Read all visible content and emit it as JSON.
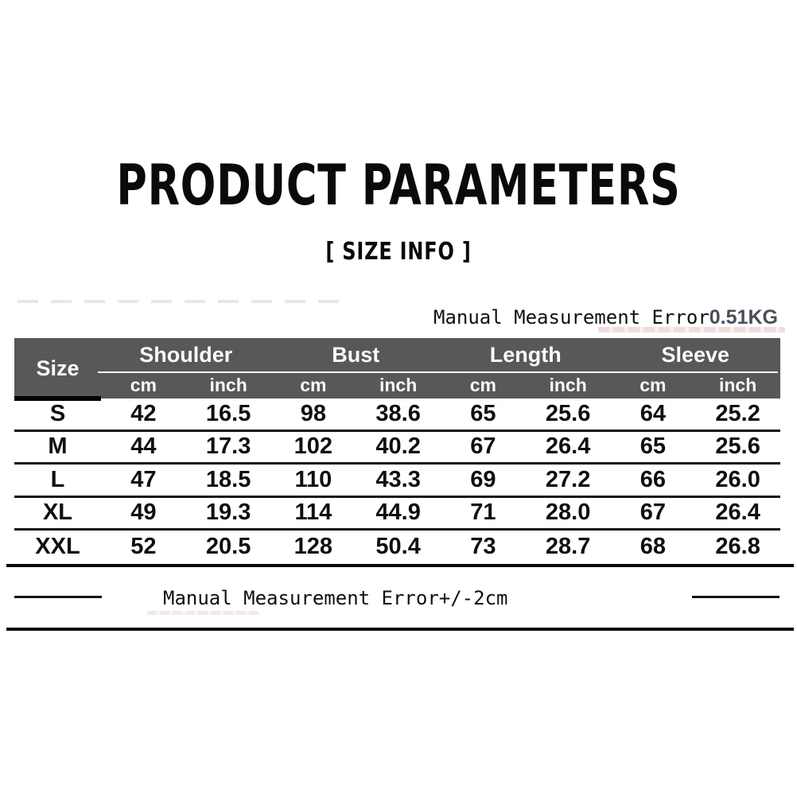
{
  "header": {
    "title": "PRODUCT PARAMETERS",
    "subtitle": "[ SIZE INFO ]"
  },
  "notes": {
    "top": {
      "label": "Manual Measurement Error",
      "value": "0.51KG"
    },
    "bottom": "Manual Measurement Error+/-2cm"
  },
  "colors": {
    "header_bg": "#58585a",
    "header_text": "#fafafa",
    "body_text": "#0f0f0f",
    "kg_value_text": "#4b4e57"
  },
  "chart_data": {
    "type": "table",
    "title": "PRODUCT PARAMETERS [ SIZE INFO ]",
    "size_label": "Size",
    "groups": [
      "Shoulder",
      "Bust",
      "Length",
      "Sleeve"
    ],
    "units": [
      "cm",
      "inch",
      "cm",
      "inch",
      "cm",
      "inch",
      "cm",
      "inch"
    ],
    "rows": [
      [
        "S",
        "42",
        "16.5",
        "98",
        "38.6",
        "65",
        "25.6",
        "64",
        "25.2"
      ],
      [
        "M",
        "44",
        "17.3",
        "102",
        "40.2",
        "67",
        "26.4",
        "65",
        "25.6"
      ],
      [
        "L",
        "47",
        "18.5",
        "110",
        "43.3",
        "69",
        "27.2",
        "66",
        "26.0"
      ],
      [
        "XL",
        "49",
        "19.3",
        "114",
        "44.9",
        "71",
        "28.0",
        "67",
        "26.4"
      ],
      [
        "XXL",
        "52",
        "20.5",
        "128",
        "50.4",
        "73",
        "28.7",
        "68",
        "26.8"
      ]
    ]
  }
}
